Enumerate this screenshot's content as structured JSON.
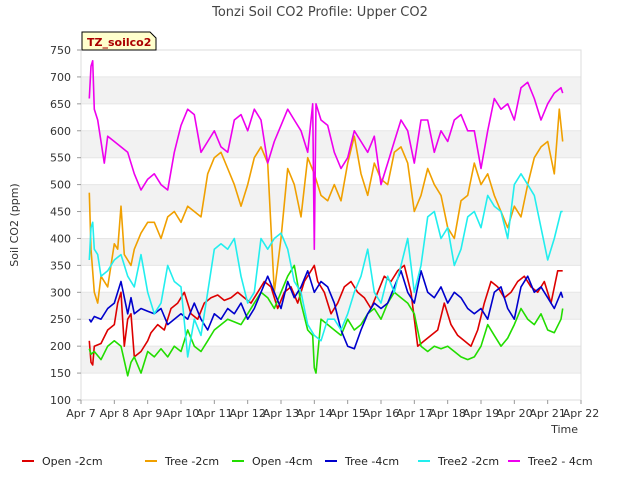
{
  "chart_data": {
    "type": "line",
    "title": "Tonzi Soil CO2 Profile: Upper CO2",
    "xlabel": "Time",
    "ylabel": "Soil CO2 (ppm)",
    "badge": "TZ_soilco2",
    "ylim": [
      100,
      750
    ],
    "xlim": [
      0,
      15
    ],
    "yticks": [
      100,
      150,
      200,
      250,
      300,
      350,
      400,
      450,
      500,
      550,
      600,
      650,
      700,
      750
    ],
    "xtick_labels": [
      "Apr 7",
      "Apr 8",
      "Apr 9",
      "Apr 10",
      "Apr 11",
      "Apr 12",
      "Apr 13",
      "Apr 14",
      "Apr 15",
      "Apr 16",
      "Apr 17",
      "Apr 18",
      "Apr 19",
      "Apr 20",
      "Apr 21",
      "Apr 22"
    ],
    "grid": "horizontal bands",
    "legend_position": "bottom",
    "series": [
      {
        "name": "Open -2cm",
        "color": "#dd0000",
        "x": [
          0.25,
          0.3,
          0.35,
          0.4,
          0.6,
          0.8,
          1.0,
          1.1,
          1.2,
          1.3,
          1.4,
          1.5,
          1.6,
          1.8,
          2.0,
          2.1,
          2.3,
          2.5,
          2.7,
          2.9,
          3.1,
          3.3,
          3.5,
          3.7,
          3.9,
          4.1,
          4.3,
          4.5,
          4.7,
          4.9,
          5.1,
          5.3,
          5.5,
          5.7,
          5.9,
          6.1,
          6.3,
          6.5,
          6.7,
          6.9,
          7.0,
          7.1,
          7.3,
          7.5,
          7.7,
          7.9,
          8.1,
          8.3,
          8.5,
          8.7,
          8.9,
          9.1,
          9.3,
          9.5,
          9.7,
          9.9,
          10.1,
          10.3,
          10.5,
          10.7,
          10.9,
          11.1,
          11.3,
          11.5,
          11.7,
          11.9,
          12.1,
          12.3,
          12.5,
          12.7,
          12.9,
          13.1,
          13.3,
          13.5,
          13.7,
          13.9,
          14.1,
          14.3,
          14.45
        ],
        "y": [
          210,
          170,
          165,
          200,
          205,
          230,
          240,
          280,
          300,
          200,
          250,
          260,
          180,
          190,
          210,
          225,
          240,
          230,
          270,
          280,
          300,
          260,
          250,
          280,
          290,
          295,
          285,
          290,
          300,
          290,
          280,
          300,
          320,
          310,
          270,
          300,
          310,
          280,
          320,
          340,
          350,
          320,
          300,
          260,
          280,
          310,
          320,
          300,
          290,
          270,
          300,
          330,
          320,
          340,
          350,
          300,
          200,
          210,
          220,
          230,
          280,
          240,
          220,
          210,
          200,
          230,
          280,
          320,
          310,
          290,
          300,
          320,
          330,
          310,
          300,
          320,
          280,
          340,
          340
        ]
      },
      {
        "name": "Tree -2cm",
        "color": "#f0a000",
        "x": [
          0.25,
          0.3,
          0.4,
          0.5,
          0.6,
          0.8,
          1.0,
          1.1,
          1.2,
          1.3,
          1.4,
          1.5,
          1.6,
          1.8,
          2.0,
          2.2,
          2.4,
          2.6,
          2.8,
          3.0,
          3.2,
          3.4,
          3.6,
          3.8,
          4.0,
          4.2,
          4.4,
          4.6,
          4.8,
          5.0,
          5.2,
          5.4,
          5.6,
          5.8,
          6.0,
          6.2,
          6.4,
          6.6,
          6.8,
          7.0,
          7.2,
          7.4,
          7.6,
          7.8,
          8.0,
          8.2,
          8.4,
          8.6,
          8.8,
          9.0,
          9.2,
          9.4,
          9.6,
          9.8,
          10.0,
          10.2,
          10.4,
          10.6,
          10.8,
          11.0,
          11.2,
          11.4,
          11.6,
          11.8,
          12.0,
          12.2,
          12.4,
          12.6,
          12.8,
          13.0,
          13.2,
          13.4,
          13.6,
          13.8,
          14.0,
          14.2,
          14.35,
          14.45
        ],
        "y": [
          485,
          380,
          300,
          280,
          330,
          310,
          390,
          380,
          460,
          370,
          360,
          350,
          380,
          410,
          430,
          430,
          400,
          440,
          450,
          430,
          460,
          450,
          440,
          520,
          550,
          560,
          530,
          500,
          460,
          500,
          550,
          570,
          540,
          300,
          400,
          530,
          500,
          440,
          550,
          520,
          480,
          470,
          500,
          470,
          540,
          590,
          520,
          480,
          540,
          510,
          500,
          560,
          570,
          540,
          450,
          480,
          530,
          500,
          480,
          420,
          400,
          470,
          480,
          540,
          500,
          520,
          480,
          450,
          420,
          460,
          440,
          500,
          550,
          570,
          580,
          520,
          640,
          580
        ]
      },
      {
        "name": "Open -4cm",
        "color": "#22dd00",
        "x": [
          0.25,
          0.3,
          0.4,
          0.6,
          0.8,
          1.0,
          1.2,
          1.4,
          1.5,
          1.6,
          1.8,
          2.0,
          2.2,
          2.4,
          2.6,
          2.8,
          3.0,
          3.2,
          3.4,
          3.6,
          3.8,
          4.0,
          4.2,
          4.4,
          4.6,
          4.8,
          5.0,
          5.2,
          5.4,
          5.6,
          5.8,
          6.0,
          6.2,
          6.4,
          6.6,
          6.8,
          6.95,
          7.0,
          7.05,
          7.2,
          7.4,
          7.6,
          7.8,
          8.0,
          8.2,
          8.4,
          8.6,
          8.8,
          9.0,
          9.2,
          9.4,
          9.6,
          9.8,
          10.0,
          10.2,
          10.4,
          10.6,
          10.8,
          11.0,
          11.2,
          11.4,
          11.6,
          11.8,
          12.0,
          12.2,
          12.4,
          12.6,
          12.8,
          13.0,
          13.2,
          13.4,
          13.6,
          13.8,
          14.0,
          14.2,
          14.4,
          14.45
        ],
        "y": [
          195,
          185,
          190,
          175,
          200,
          210,
          200,
          145,
          170,
          180,
          150,
          190,
          180,
          195,
          180,
          200,
          190,
          230,
          200,
          190,
          210,
          230,
          240,
          250,
          245,
          240,
          260,
          280,
          300,
          290,
          270,
          300,
          330,
          350,
          280,
          230,
          220,
          160,
          150,
          250,
          240,
          230,
          220,
          250,
          230,
          240,
          260,
          270,
          250,
          280,
          300,
          290,
          280,
          260,
          200,
          190,
          200,
          195,
          200,
          190,
          180,
          175,
          180,
          200,
          240,
          220,
          200,
          215,
          240,
          270,
          250,
          240,
          260,
          230,
          225,
          250,
          270
        ]
      },
      {
        "name": "Tree -4cm",
        "color": "#0000cc",
        "x": [
          0.25,
          0.3,
          0.4,
          0.6,
          0.8,
          1.0,
          1.2,
          1.4,
          1.5,
          1.6,
          1.8,
          2.0,
          2.2,
          2.4,
          2.6,
          2.8,
          3.0,
          3.2,
          3.4,
          3.6,
          3.8,
          4.0,
          4.2,
          4.4,
          4.6,
          4.8,
          5.0,
          5.2,
          5.4,
          5.6,
          5.8,
          6.0,
          6.2,
          6.4,
          6.6,
          6.8,
          7.0,
          7.2,
          7.4,
          7.6,
          7.8,
          8.0,
          8.2,
          8.4,
          8.6,
          8.8,
          9.0,
          9.2,
          9.4,
          9.6,
          9.8,
          10.0,
          10.2,
          10.4,
          10.6,
          10.8,
          11.0,
          11.2,
          11.4,
          11.6,
          11.8,
          12.0,
          12.2,
          12.4,
          12.6,
          12.8,
          13.0,
          13.2,
          13.4,
          13.6,
          13.8,
          14.0,
          14.2,
          14.4,
          14.45
        ],
        "y": [
          250,
          245,
          255,
          250,
          270,
          280,
          320,
          260,
          290,
          260,
          270,
          265,
          260,
          270,
          240,
          250,
          260,
          250,
          280,
          250,
          230,
          260,
          250,
          270,
          260,
          280,
          250,
          270,
          300,
          330,
          300,
          270,
          320,
          290,
          310,
          340,
          300,
          320,
          310,
          280,
          230,
          200,
          195,
          230,
          260,
          280,
          270,
          280,
          310,
          340,
          300,
          280,
          340,
          300,
          290,
          310,
          280,
          300,
          290,
          270,
          260,
          270,
          250,
          300,
          310,
          270,
          250,
          310,
          330,
          300,
          310,
          290,
          270,
          300,
          290
        ]
      },
      {
        "name": "Tree2 -2cm",
        "color": "#22eeee",
        "x": [
          0.25,
          0.3,
          0.35,
          0.4,
          0.5,
          0.6,
          0.8,
          1.0,
          1.2,
          1.4,
          1.6,
          1.8,
          2.0,
          2.2,
          2.4,
          2.6,
          2.8,
          3.0,
          3.2,
          3.4,
          3.6,
          3.8,
          4.0,
          4.2,
          4.4,
          4.6,
          4.8,
          5.0,
          5.2,
          5.4,
          5.6,
          5.8,
          6.0,
          6.2,
          6.4,
          6.6,
          6.8,
          7.0,
          7.2,
          7.4,
          7.6,
          7.8,
          8.0,
          8.2,
          8.4,
          8.6,
          8.8,
          9.0,
          9.2,
          9.4,
          9.6,
          9.8,
          10.0,
          10.2,
          10.4,
          10.6,
          10.8,
          11.0,
          11.2,
          11.4,
          11.6,
          11.8,
          12.0,
          12.2,
          12.4,
          12.6,
          12.8,
          13.0,
          13.2,
          13.4,
          13.6,
          13.8,
          14.0,
          14.2,
          14.4,
          14.45
        ],
        "y": [
          360,
          420,
          430,
          380,
          370,
          330,
          340,
          360,
          370,
          330,
          310,
          370,
          300,
          260,
          280,
          350,
          320,
          310,
          180,
          250,
          220,
          300,
          380,
          390,
          380,
          400,
          330,
          280,
          300,
          400,
          380,
          400,
          410,
          380,
          320,
          300,
          240,
          220,
          210,
          250,
          250,
          230,
          260,
          300,
          330,
          380,
          300,
          280,
          330,
          300,
          350,
          400,
          300,
          350,
          440,
          450,
          400,
          420,
          350,
          380,
          440,
          450,
          420,
          480,
          460,
          450,
          400,
          500,
          520,
          500,
          480,
          420,
          360,
          400,
          450,
          450
        ]
      },
      {
        "name": "Tree2 - 4cm",
        "color": "#ee00ee",
        "x": [
          0.25,
          0.3,
          0.35,
          0.4,
          0.5,
          0.6,
          0.7,
          0.8,
          1.0,
          1.2,
          1.4,
          1.6,
          1.8,
          2.0,
          2.2,
          2.4,
          2.6,
          2.8,
          3.0,
          3.2,
          3.4,
          3.6,
          3.8,
          4.0,
          4.2,
          4.4,
          4.6,
          4.8,
          5.0,
          5.2,
          5.4,
          5.6,
          5.8,
          6.0,
          6.2,
          6.4,
          6.6,
          6.8,
          6.95,
          7.0,
          7.05,
          7.2,
          7.4,
          7.6,
          7.8,
          8.0,
          8.2,
          8.4,
          8.6,
          8.8,
          9.0,
          9.2,
          9.4,
          9.6,
          9.8,
          10.0,
          10.2,
          10.4,
          10.6,
          10.8,
          11.0,
          11.2,
          11.4,
          11.6,
          11.8,
          12.0,
          12.2,
          12.4,
          12.6,
          12.8,
          13.0,
          13.2,
          13.4,
          13.6,
          13.8,
          14.0,
          14.2,
          14.4,
          14.45
        ],
        "y": [
          660,
          720,
          730,
          640,
          620,
          580,
          540,
          590,
          580,
          570,
          560,
          520,
          490,
          510,
          520,
          500,
          490,
          560,
          610,
          640,
          630,
          560,
          580,
          600,
          570,
          560,
          620,
          630,
          600,
          640,
          620,
          540,
          580,
          610,
          640,
          620,
          600,
          560,
          650,
          380,
          650,
          620,
          610,
          560,
          530,
          550,
          600,
          580,
          560,
          590,
          500,
          540,
          580,
          620,
          600,
          540,
          620,
          620,
          560,
          600,
          580,
          620,
          630,
          600,
          600,
          530,
          600,
          660,
          640,
          650,
          620,
          680,
          690,
          660,
          620,
          650,
          670,
          680,
          670
        ]
      }
    ]
  }
}
